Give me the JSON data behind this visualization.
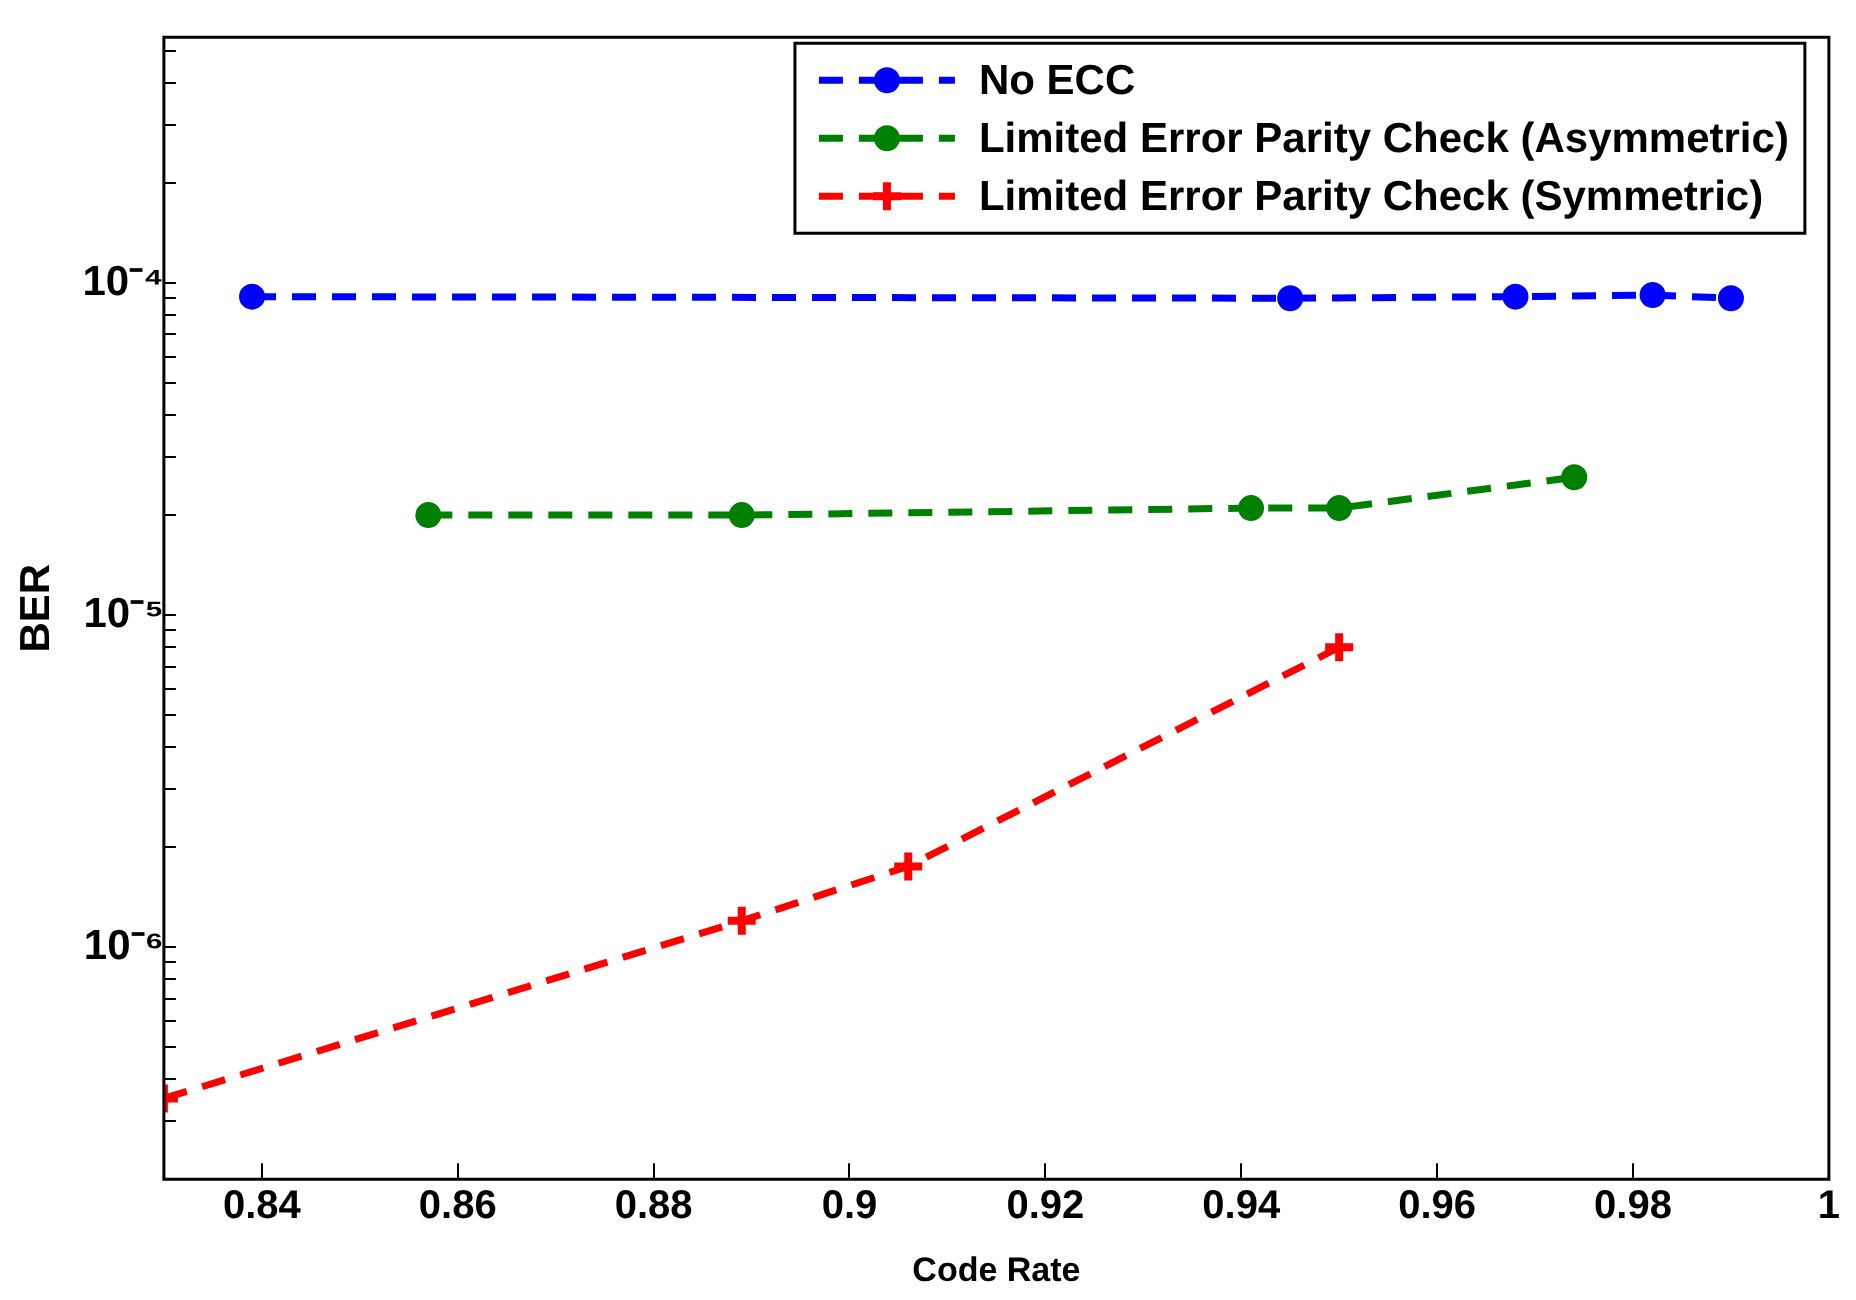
{
  "chart_data": {
    "type": "line",
    "xlabel": "Code Rate",
    "ylabel": "BER",
    "log": "y",
    "grid": false,
    "legend": "top right",
    "line_style": "dashed",
    "xlim": [
      0.83,
      1
    ],
    "xticks": [
      0.84,
      0.86,
      0.88,
      0.9,
      0.92,
      0.94,
      0.96,
      0.98,
      1
    ],
    "ylim": [
      2e-07,
      0.00055
    ],
    "yticks": [
      {
        "value": 2e-07,
        "label": null
      },
      {
        "value": 3e-07,
        "label": null
      },
      {
        "value": 4e-07,
        "label": null
      },
      {
        "value": 5e-07,
        "label": null
      },
      {
        "value": 6e-07,
        "label": null
      },
      {
        "value": 7e-07,
        "label": null
      },
      {
        "value": 8e-07,
        "label": null
      },
      {
        "value": 9e-07,
        "label": null
      },
      {
        "value": 1e-06,
        "label": "10⁻⁶"
      },
      {
        "value": 2e-06,
        "label": null
      },
      {
        "value": 3e-06,
        "label": null
      },
      {
        "value": 4e-06,
        "label": null
      },
      {
        "value": 5e-06,
        "label": null
      },
      {
        "value": 6e-06,
        "label": null
      },
      {
        "value": 7e-06,
        "label": null
      },
      {
        "value": 8e-06,
        "label": null
      },
      {
        "value": 9e-06,
        "label": null
      },
      {
        "value": 1e-05,
        "label": "10⁻⁵"
      },
      {
        "value": 2e-05,
        "label": null
      },
      {
        "value": 3e-05,
        "label": null
      },
      {
        "value": 4e-05,
        "label": null
      },
      {
        "value": 5e-05,
        "label": null
      },
      {
        "value": 6e-05,
        "label": null
      },
      {
        "value": 7e-05,
        "label": null
      },
      {
        "value": 8e-05,
        "label": null
      },
      {
        "value": 9e-05,
        "label": null
      },
      {
        "value": 0.0001,
        "label": "10⁻⁴"
      },
      {
        "value": 0.0002,
        "label": null
      },
      {
        "value": 0.0003,
        "label": null
      },
      {
        "value": 0.0004,
        "label": null
      },
      {
        "value": 0.0005,
        "label": null
      }
    ],
    "series": [
      {
        "name": "No ECC",
        "color": "#0000ff",
        "marker": "circle",
        "x": [
          0.839,
          0.945,
          0.968,
          0.982,
          0.99
        ],
        "values": [
          9.1e-05,
          9e-05,
          9.1e-05,
          9.2e-05,
          9e-05
        ]
      },
      {
        "name": "Limited Error Parity Check (Asymmetric)",
        "color": "#008000",
        "marker": "circle",
        "x": [
          0.857,
          0.889,
          0.941,
          0.95,
          0.974
        ],
        "values": [
          2e-05,
          2e-05,
          2.1e-05,
          2.1e-05,
          2.6e-05
        ]
      },
      {
        "name": "Limited Error Parity Check (Symmetric)",
        "color": "#ff0000",
        "marker": "cross",
        "x": [
          0.83,
          0.889,
          0.906,
          0.95
        ],
        "values": [
          3.5e-07,
          1.2e-06,
          1.75e-06,
          8e-06
        ]
      }
    ]
  }
}
